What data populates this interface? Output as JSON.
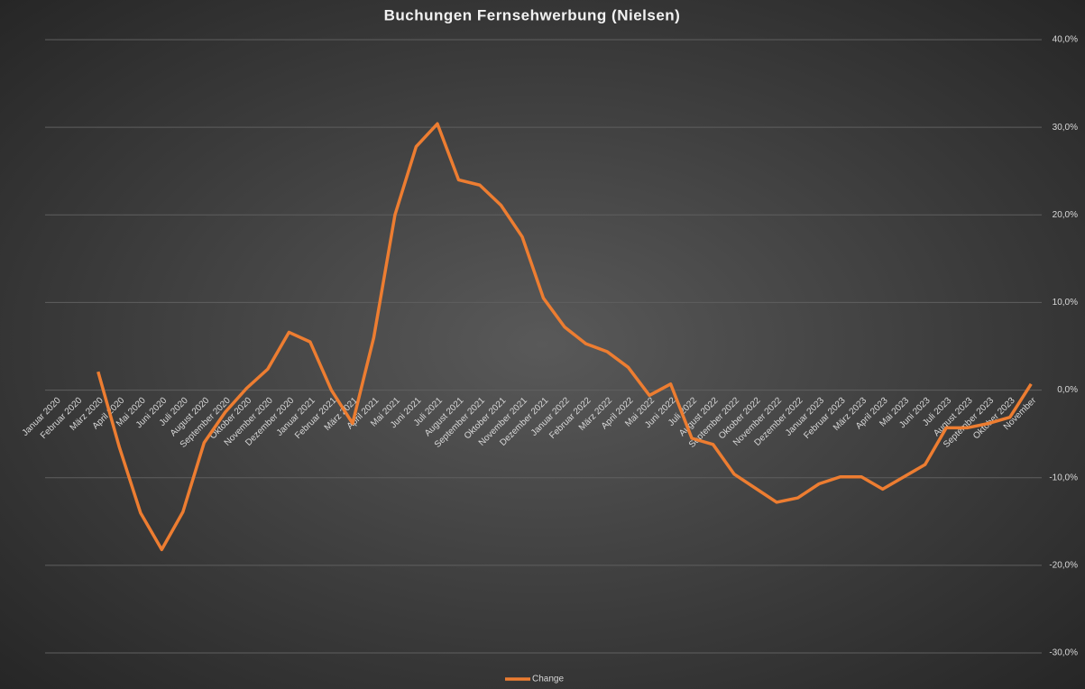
{
  "chart_data": {
    "type": "line",
    "title": "Buchungen Fernsehwerbung (Nielsen)",
    "categories": [
      "Januar 2020",
      "Februar 2020",
      "März 2020",
      "April 2020",
      "Mai 2020",
      "Juni 2020",
      "Juli 2020",
      "August 2020",
      "September 2020",
      "Oktober 2020",
      "November 2020",
      "Dezember 2020",
      "Januar 2021",
      "Februar 2021",
      "März 2021",
      "April 2021",
      "Mai 2021",
      "Juni 2021",
      "Juli 2021",
      "August 2021",
      "September 2021",
      "Oktober 2021",
      "November 2021",
      "Dezember 2021",
      "Januar 2022",
      "Februar 2022",
      "März 2022",
      "April 2022",
      "Mai 2022",
      "Juni 2022",
      "Juli 2022",
      "August 2022",
      "September 2022",
      "Oktober 2022",
      "November 2022",
      "Dezember 2022",
      "Januar 2023",
      "Februar 2023",
      "März 2023",
      "April 2023",
      "Mai 2023",
      "Juni 2023",
      "Juli 2023",
      "August 2023",
      "September 2023",
      "Oktober 2023",
      "November"
    ],
    "series": [
      {
        "name": "Change",
        "color": "#ed7d31",
        "values": [
          null,
          null,
          2.1,
          -6.5,
          -14.0,
          -18.2,
          -13.9,
          -6.0,
          -2.5,
          0.2,
          2.4,
          6.6,
          5.5,
          0.0,
          -3.8,
          6.0,
          20.0,
          27.8,
          30.4,
          24.0,
          23.4,
          21.1,
          17.5,
          10.5,
          7.2,
          5.3,
          4.4,
          2.6,
          -0.6,
          0.7,
          -5.5,
          -6.2,
          -9.6,
          -11.2,
          -12.8,
          -12.3,
          -10.7,
          -9.9,
          -9.9,
          -11.3,
          -9.9,
          -8.5,
          -4.3,
          -4.3,
          -3.8,
          -3.1,
          0.7
        ]
      }
    ],
    "ylim": [
      -30,
      40
    ],
    "yticks": [
      {
        "value": -30,
        "label": "-30,0%"
      },
      {
        "value": -20,
        "label": "-20,0%"
      },
      {
        "value": -10,
        "label": "-10,0%"
      },
      {
        "value": 0,
        "label": "0,0%"
      },
      {
        "value": 10,
        "label": "10,0%"
      },
      {
        "value": 20,
        "label": "20,0%"
      },
      {
        "value": 30,
        "label": "30,0%"
      },
      {
        "value": 40,
        "label": "40,0%"
      }
    ],
    "grid": true,
    "legend": "bottom"
  }
}
